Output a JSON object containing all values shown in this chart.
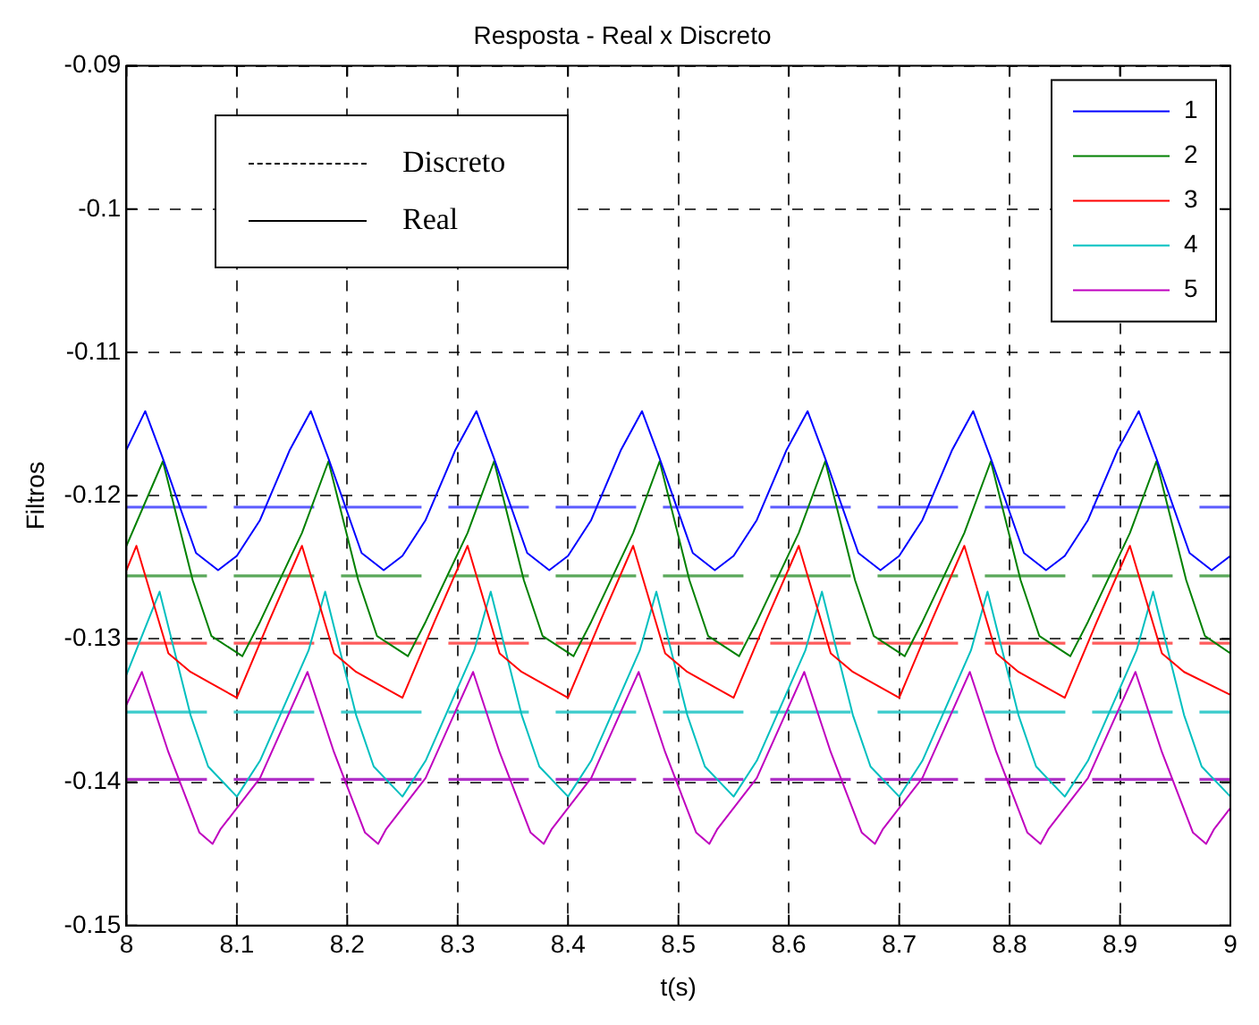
{
  "chart_data": {
    "type": "line",
    "title": "Resposta - Real x Discreto",
    "xlabel": "t(s)",
    "ylabel": "Filtros",
    "xlim": [
      8,
      9
    ],
    "xticks": [
      8,
      8.1,
      8.2,
      8.3,
      8.4,
      8.5,
      8.6,
      8.7,
      8.8,
      8.9,
      9
    ],
    "ylim": [
      -0.15,
      -0.09
    ],
    "yticks": [
      -0.15,
      -0.14,
      -0.13,
      -0.12,
      -0.11,
      -0.1,
      -0.09
    ],
    "grid": true,
    "legend": "top right",
    "marker": "none",
    "annotations": [
      "Discreto",
      "Real"
    ],
    "series": [
      {
        "name": "1",
        "color": "#0000ff",
        "line_style": "solid",
        "x": [
          8,
          8.017,
          8.033,
          8.063,
          8.083,
          8.1,
          8.121,
          8.148,
          8.167,
          8.183,
          8.213,
          8.233,
          8.25,
          8.271,
          8.298,
          8.317,
          8.333,
          8.363,
          8.383,
          8.4,
          8.421,
          8.448,
          8.467,
          8.483,
          8.513,
          8.533,
          8.55,
          8.571,
          8.598,
          8.617,
          8.633,
          8.663,
          8.683,
          8.7,
          8.721,
          8.748,
          8.767,
          8.783,
          8.813,
          8.833,
          8.85,
          8.871,
          8.898,
          8.917,
          8.933,
          8.963,
          8.983,
          9
        ],
        "values": [
          -0.1168,
          -0.1141,
          -0.1174,
          -0.124,
          -0.1252,
          -0.1242,
          -0.1217,
          -0.1168,
          -0.1141,
          -0.1174,
          -0.124,
          -0.1252,
          -0.1242,
          -0.1217,
          -0.1168,
          -0.1141,
          -0.1174,
          -0.124,
          -0.1252,
          -0.1242,
          -0.1217,
          -0.1168,
          -0.1141,
          -0.1174,
          -0.124,
          -0.1252,
          -0.1242,
          -0.1217,
          -0.1168,
          -0.1141,
          -0.1174,
          -0.124,
          -0.1252,
          -0.1242,
          -0.1217,
          -0.1168,
          -0.1141,
          -0.1174,
          -0.124,
          -0.1252,
          -0.1242,
          -0.1217,
          -0.1168,
          -0.1141,
          -0.1174,
          -0.124,
          -0.1252,
          -0.1242
        ]
      },
      {
        "name": "2",
        "color": "#008000",
        "line_style": "solid",
        "x": [
          8,
          8.033,
          8.06,
          8.077,
          8.105,
          8.121,
          8.159,
          8.183,
          8.21,
          8.227,
          8.255,
          8.271,
          8.309,
          8.333,
          8.36,
          8.377,
          8.405,
          8.421,
          8.459,
          8.483,
          8.51,
          8.527,
          8.555,
          8.571,
          8.609,
          8.633,
          8.66,
          8.677,
          8.705,
          8.721,
          8.759,
          8.783,
          8.81,
          8.827,
          8.855,
          8.871,
          8.909,
          8.933,
          8.96,
          8.977,
          9
        ],
        "values": [
          -0.1235,
          -0.1176,
          -0.1259,
          -0.1298,
          -0.1312,
          -0.1288,
          -0.1226,
          -0.1176,
          -0.1259,
          -0.1298,
          -0.1312,
          -0.1288,
          -0.1226,
          -0.1176,
          -0.1259,
          -0.1298,
          -0.1312,
          -0.1288,
          -0.1226,
          -0.1176,
          -0.1259,
          -0.1298,
          -0.1312,
          -0.1288,
          -0.1226,
          -0.1176,
          -0.1259,
          -0.1298,
          -0.1312,
          -0.1288,
          -0.1226,
          -0.1176,
          -0.1259,
          -0.1298,
          -0.1312,
          -0.1288,
          -0.1226,
          -0.1176,
          -0.1259,
          -0.1298,
          -0.131
        ]
      },
      {
        "name": "3",
        "color": "#ff0000",
        "line_style": "solid",
        "x": [
          8,
          8.009,
          8.038,
          8.058,
          8.1,
          8.129,
          8.159,
          8.188,
          8.208,
          8.25,
          8.279,
          8.309,
          8.338,
          8.358,
          8.4,
          8.429,
          8.459,
          8.488,
          8.508,
          8.55,
          8.579,
          8.609,
          8.638,
          8.658,
          8.7,
          8.729,
          8.759,
          8.788,
          8.808,
          8.85,
          8.879,
          8.909,
          8.938,
          8.958,
          9
        ],
        "values": [
          -0.1252,
          -0.1235,
          -0.131,
          -0.1323,
          -0.1341,
          -0.1288,
          -0.1235,
          -0.131,
          -0.1323,
          -0.1341,
          -0.1288,
          -0.1235,
          -0.131,
          -0.1323,
          -0.1341,
          -0.1288,
          -0.1235,
          -0.131,
          -0.1323,
          -0.1341,
          -0.1288,
          -0.1235,
          -0.131,
          -0.1323,
          -0.1341,
          -0.1288,
          -0.1235,
          -0.131,
          -0.1323,
          -0.1341,
          -0.1288,
          -0.1235,
          -0.131,
          -0.1323,
          -0.1339
        ]
      },
      {
        "name": "4",
        "color": "#00bfbf",
        "line_style": "solid",
        "x": [
          8,
          8.03,
          8.058,
          8.074,
          8.1,
          8.121,
          8.165,
          8.18,
          8.208,
          8.224,
          8.25,
          8.271,
          8.315,
          8.33,
          8.358,
          8.374,
          8.4,
          8.421,
          8.465,
          8.48,
          8.508,
          8.524,
          8.55,
          8.571,
          8.615,
          8.63,
          8.658,
          8.674,
          8.7,
          8.721,
          8.765,
          8.78,
          8.808,
          8.824,
          8.85,
          8.871,
          8.915,
          8.93,
          8.958,
          8.974,
          9
        ],
        "values": [
          -0.1325,
          -0.1267,
          -0.1353,
          -0.1389,
          -0.141,
          -0.1385,
          -0.1308,
          -0.1267,
          -0.1353,
          -0.1389,
          -0.141,
          -0.1385,
          -0.1308,
          -0.1267,
          -0.1353,
          -0.1389,
          -0.141,
          -0.1385,
          -0.1308,
          -0.1267,
          -0.1353,
          -0.1389,
          -0.141,
          -0.1385,
          -0.1308,
          -0.1267,
          -0.1353,
          -0.1389,
          -0.141,
          -0.1385,
          -0.1308,
          -0.1267,
          -0.1353,
          -0.1389,
          -0.141,
          -0.1385,
          -0.1308,
          -0.1267,
          -0.1353,
          -0.1389,
          -0.141
        ]
      },
      {
        "name": "5",
        "color": "#bf00bf",
        "line_style": "solid",
        "x": [
          8,
          8.014,
          8.038,
          8.066,
          8.078,
          8.085,
          8.121,
          8.164,
          8.188,
          8.216,
          8.228,
          8.235,
          8.271,
          8.314,
          8.338,
          8.366,
          8.378,
          8.385,
          8.421,
          8.464,
          8.488,
          8.516,
          8.528,
          8.535,
          8.571,
          8.614,
          8.638,
          8.666,
          8.678,
          8.685,
          8.721,
          8.764,
          8.788,
          8.816,
          8.828,
          8.835,
          8.871,
          8.914,
          8.938,
          8.966,
          8.978,
          8.985,
          9
        ],
        "values": [
          -0.1346,
          -0.1323,
          -0.1379,
          -0.1435,
          -0.1443,
          -0.1433,
          -0.1397,
          -0.1323,
          -0.1379,
          -0.1435,
          -0.1443,
          -0.1433,
          -0.1397,
          -0.1323,
          -0.1379,
          -0.1435,
          -0.1443,
          -0.1433,
          -0.1397,
          -0.1323,
          -0.1379,
          -0.1435,
          -0.1443,
          -0.1433,
          -0.1397,
          -0.1323,
          -0.1379,
          -0.1435,
          -0.1443,
          -0.1433,
          -0.1397,
          -0.1323,
          -0.1379,
          -0.1435,
          -0.1443,
          -0.1433,
          -0.1397,
          -0.1323,
          -0.1379,
          -0.1435,
          -0.1443,
          -0.1433,
          -0.1418
        ]
      },
      {
        "color": "#5c5cff",
        "line_style": "dashed",
        "x": [
          8,
          9
        ],
        "values": [
          -0.1208,
          -0.1208
        ]
      },
      {
        "color": "#5aa85a",
        "line_style": "dashed",
        "x": [
          8,
          9
        ],
        "values": [
          -0.1256,
          -0.1256
        ]
      },
      {
        "color": "#ff5c5c",
        "line_style": "dashed",
        "x": [
          8,
          9
        ],
        "values": [
          -0.1303,
          -0.1303
        ]
      },
      {
        "color": "#3ccccc",
        "line_style": "dashed",
        "x": [
          8,
          9
        ],
        "values": [
          -0.1351,
          -0.1351
        ]
      },
      {
        "color": "#b030c8",
        "line_style": "dashed",
        "x": [
          8,
          9
        ],
        "values": [
          -0.1398,
          -0.1398
        ]
      }
    ]
  }
}
